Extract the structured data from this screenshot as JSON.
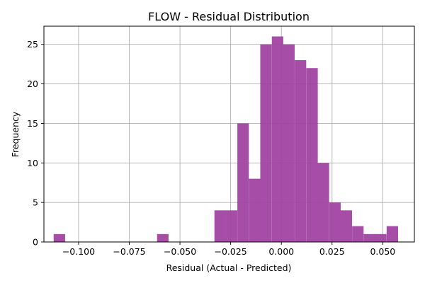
{
  "chart_data": {
    "type": "bar",
    "title": "FLOW - Residual Distribution",
    "xlabel": "Residual (Actual - Predicted)",
    "ylabel": "Frequency",
    "xlim": [
      -0.1171,
      0.0656
    ],
    "ylim": [
      0,
      27.3
    ],
    "x_ticks": [
      -0.1,
      -0.075,
      -0.05,
      -0.025,
      0.0,
      0.025,
      0.05
    ],
    "x_tick_labels": [
      "−0.100",
      "−0.075",
      "−0.050",
      "−0.025",
      "0.000",
      "0.025",
      "0.050"
    ],
    "y_ticks": [
      0,
      5,
      10,
      15,
      20,
      25
    ],
    "y_tick_labels": [
      "0",
      "5",
      "10",
      "15",
      "20",
      "25"
    ],
    "grid": true,
    "bar_color": "#9e3fa0",
    "bin_width": 0.00566,
    "bins": [
      {
        "x0": -0.1123,
        "count": 1
      },
      {
        "x0": -0.0613,
        "count": 1
      },
      {
        "x0": -0.033,
        "count": 4
      },
      {
        "x0": -0.0274,
        "count": 4
      },
      {
        "x0": -0.0217,
        "count": 15
      },
      {
        "x0": -0.016,
        "count": 8
      },
      {
        "x0": -0.0104,
        "count": 25
      },
      {
        "x0": -0.0047,
        "count": 26
      },
      {
        "x0": 0.0009,
        "count": 25
      },
      {
        "x0": 0.0066,
        "count": 23
      },
      {
        "x0": 0.0123,
        "count": 22
      },
      {
        "x0": 0.0179,
        "count": 10
      },
      {
        "x0": 0.0236,
        "count": 5
      },
      {
        "x0": 0.0292,
        "count": 4
      },
      {
        "x0": 0.0349,
        "count": 2
      },
      {
        "x0": 0.0406,
        "count": 1
      },
      {
        "x0": 0.0462,
        "count": 1
      },
      {
        "x0": 0.0519,
        "count": 2
      }
    ]
  }
}
